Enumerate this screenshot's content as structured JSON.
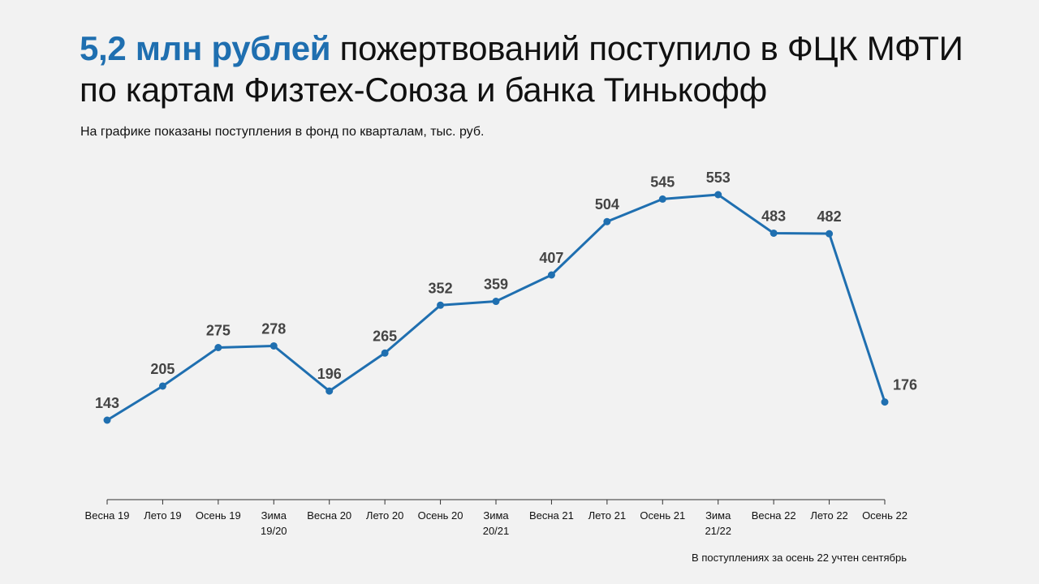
{
  "header": {
    "title_accent": "5,2 млн рублей",
    "title_rest": " пожертвований поступило в ФЦК МФТИ по картам Физтех-Союза и банка Тинькофф",
    "subtitle": "На графике показаны поступления в фонд по кварталам, тыс. руб."
  },
  "footnote": "В поступлениях за осень 22 учтен сентябрь",
  "colors": {
    "accent": "#1f6fb0",
    "line": "#1f6fb0",
    "background": "#f2f2f2"
  },
  "chart_data": {
    "type": "line",
    "title": "",
    "xlabel": "",
    "ylabel": "",
    "grid": false,
    "categories": [
      [
        "Весна 19"
      ],
      [
        "Лето 19"
      ],
      [
        "Осень 19"
      ],
      [
        "Зима",
        "19/20"
      ],
      [
        "Весна 20"
      ],
      [
        "Лето 20"
      ],
      [
        "Осень 20"
      ],
      [
        "Зима",
        "20/21"
      ],
      [
        "Весна 21"
      ],
      [
        "Лето 21"
      ],
      [
        "Осень 21"
      ],
      [
        "Зима",
        "21/22"
      ],
      [
        "Весна 22"
      ],
      [
        "Лето 22"
      ],
      [
        "Осень 22"
      ]
    ],
    "values": [
      143,
      205,
      275,
      278,
      196,
      265,
      352,
      359,
      407,
      504,
      545,
      553,
      483,
      482,
      176
    ],
    "data_labels": [
      "143",
      "205",
      "275",
      "278",
      "196",
      "265",
      "352",
      "359",
      "407",
      "504",
      "545",
      "553",
      "483",
      "482",
      "176"
    ]
  }
}
